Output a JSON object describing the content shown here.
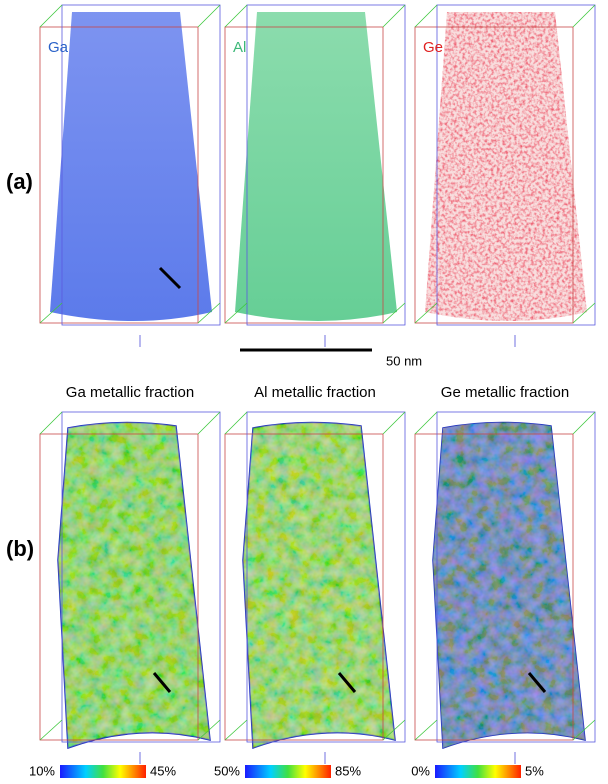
{
  "panel_a": {
    "label": "(a)",
    "elements": [
      "Ga",
      "Al",
      "Ge"
    ],
    "scale_bar": "50 nm"
  },
  "panel_b": {
    "label": "(b)",
    "titles": [
      "Ga metallic fraction",
      "Al metallic fraction",
      "Ge metallic fraction"
    ],
    "colorbars": [
      [
        "10%",
        "45%"
      ],
      [
        "50%",
        "85%"
      ],
      [
        "0%",
        "5%"
      ]
    ]
  }
}
